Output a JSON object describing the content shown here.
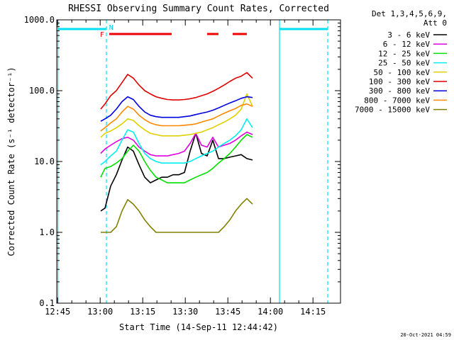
{
  "chart_data": {
    "type": "line",
    "title": "RHESSI Observing Summary Count Rates, Corrected",
    "xlabel": "Start Time (14-Sep-11 12:44:42)",
    "ylabel": "Corrected Count Rate (s⁻¹ detector⁻¹)",
    "yscale": "log",
    "ylim": [
      0.1,
      1000.0
    ],
    "xlim": [
      0,
      100
    ],
    "x_unit": "minutes after 12:44:42",
    "x_ticks": [
      0.3,
      15.3,
      30.3,
      45.3,
      60.3,
      75.3,
      90.3
    ],
    "x_tick_labels": [
      "12:45",
      "13:00",
      "13:15",
      "13:30",
      "13:45",
      "14:00",
      "14:15"
    ],
    "y_tick_labels": [
      "0.1",
      "1.0",
      "10.0",
      "100.0",
      "1000.0"
    ],
    "date_stamp": "20-Oct-2021 04:59",
    "legend": {
      "header": [
        "Det 1,3,4,5,6,9,",
        "Att 0"
      ],
      "placement": "outside-top-right"
    },
    "flags": {
      "F": "F",
      "N": "N"
    },
    "series": [
      {
        "name": "3 - 6 keV",
        "color": "#000000",
        "x": [
          15.5,
          17,
          19,
          21,
          23,
          25,
          27,
          29,
          31,
          33,
          35,
          37,
          39,
          41,
          43,
          45,
          47,
          49,
          51,
          53,
          55,
          57,
          59,
          61,
          63,
          65,
          67,
          69
        ],
        "y": [
          2.0,
          2.2,
          4.5,
          6.5,
          10.5,
          16.0,
          14.0,
          9.0,
          6.0,
          5.0,
          5.5,
          6.0,
          6.0,
          6.5,
          6.5,
          7.0,
          14.0,
          25.0,
          13.0,
          12.0,
          20.0,
          11.0,
          11.0,
          11.5,
          12.0,
          12.5,
          11.0,
          10.5
        ]
      },
      {
        "name": "6 - 12 keV",
        "color": "#e000e0",
        "x": [
          15.5,
          17,
          19,
          21,
          23,
          25,
          27,
          29,
          31,
          33,
          35,
          37,
          39,
          41,
          43,
          45,
          47,
          49,
          51,
          53,
          55,
          57,
          59,
          61,
          63,
          65,
          67,
          69
        ],
        "y": [
          13.0,
          15.0,
          17.0,
          19.0,
          21.0,
          22.0,
          20.0,
          16.0,
          14.0,
          12.5,
          12.0,
          12.0,
          12.0,
          12.5,
          13.0,
          14.0,
          18.0,
          25.0,
          17.0,
          16.0,
          22.0,
          16.0,
          17.0,
          18.0,
          20.0,
          23.0,
          26.0,
          24.0
        ]
      },
      {
        "name": "12 - 25 keV",
        "color": "#00e000",
        "x": [
          15.5,
          17,
          19,
          21,
          23,
          25,
          27,
          29,
          31,
          33,
          35,
          37,
          39,
          41,
          43,
          45,
          47,
          49,
          51,
          53,
          55,
          57,
          59,
          61,
          63,
          65,
          67,
          69
        ],
        "y": [
          6.0,
          8.0,
          8.5,
          9.5,
          11.0,
          14.0,
          17.0,
          14.0,
          10.0,
          7.5,
          6.0,
          5.5,
          5.0,
          5.0,
          5.0,
          5.0,
          5.5,
          6.0,
          6.5,
          7.0,
          8.0,
          9.5,
          11.0,
          13.0,
          16.0,
          20.0,
          24.0,
          22.0
        ]
      },
      {
        "name": "25 - 50 keV",
        "color": "#00f0f0",
        "x": [
          15.5,
          17,
          19,
          21,
          23,
          25,
          27,
          29,
          31,
          33,
          35,
          37,
          39,
          41,
          43,
          45,
          47,
          49,
          51,
          53,
          55,
          57,
          59,
          61,
          63,
          65,
          67,
          69
        ],
        "y": [
          9.0,
          10.0,
          12.0,
          14.0,
          20.0,
          28.0,
          26.0,
          18.0,
          13.0,
          11.0,
          10.0,
          9.5,
          9.5,
          9.5,
          9.5,
          9.5,
          10.0,
          11.0,
          12.0,
          13.0,
          14.0,
          16.0,
          18.0,
          20.0,
          23.0,
          28.0,
          40.0,
          30.0
        ]
      },
      {
        "name": "50 - 100 keV",
        "color": "#e0d000",
        "x": [
          15.5,
          17,
          19,
          21,
          23,
          25,
          27,
          29,
          31,
          33,
          35,
          37,
          39,
          41,
          43,
          45,
          47,
          49,
          51,
          53,
          55,
          57,
          59,
          61,
          63,
          65,
          67,
          69
        ],
        "y": [
          22.0,
          25.0,
          27.0,
          30.0,
          34.0,
          40.0,
          38.0,
          32.0,
          28.0,
          25.0,
          24.0,
          23.0,
          23.0,
          23.0,
          23.0,
          23.5,
          24.0,
          25.0,
          26.0,
          28.0,
          30.0,
          33.0,
          36.0,
          40.0,
          45.0,
          55.0,
          90.0,
          60.0
        ]
      },
      {
        "name": "100 - 300 keV",
        "color": "#e00000",
        "x": [
          15.5,
          17,
          19,
          21,
          23,
          25,
          27,
          29,
          31,
          33,
          35,
          37,
          39,
          41,
          43,
          45,
          47,
          49,
          51,
          53,
          55,
          57,
          59,
          61,
          63,
          65,
          67,
          69
        ],
        "y": [
          55.0,
          65.0,
          85.0,
          100.0,
          130.0,
          170.0,
          150.0,
          120.0,
          100.0,
          90.0,
          82.0,
          78.0,
          75.0,
          74.0,
          74.0,
          75.0,
          77.0,
          80.0,
          85.0,
          90.0,
          98.0,
          108.0,
          120.0,
          135.0,
          150.0,
          160.0,
          180.0,
          150.0
        ]
      },
      {
        "name": "300 - 800 keV",
        "color": "#0000e0",
        "x": [
          15.5,
          17,
          19,
          21,
          23,
          25,
          27,
          29,
          31,
          33,
          35,
          37,
          39,
          41,
          43,
          45,
          47,
          49,
          51,
          53,
          55,
          57,
          59,
          61,
          63,
          65,
          67,
          69
        ],
        "y": [
          37.0,
          40.0,
          45.0,
          55.0,
          70.0,
          82.0,
          75.0,
          60.0,
          50.0,
          45.0,
          43.0,
          42.0,
          42.0,
          42.0,
          42.0,
          43.0,
          44.0,
          46.0,
          48.0,
          50.0,
          53.0,
          57.0,
          62.0,
          67.0,
          72.0,
          78.0,
          82.0,
          80.0
        ]
      },
      {
        "name": "800 - 7000 keV",
        "color": "#ff8800",
        "x": [
          15.5,
          17,
          19,
          21,
          23,
          25,
          27,
          29,
          31,
          33,
          35,
          37,
          39,
          41,
          43,
          45,
          47,
          49,
          51,
          53,
          55,
          57,
          59,
          61,
          63,
          65,
          67,
          69
        ],
        "y": [
          27.0,
          30.0,
          35.0,
          40.0,
          50.0,
          60.0,
          55.0,
          45.0,
          39.0,
          35.0,
          33.0,
          32.0,
          32.0,
          32.0,
          32.0,
          32.5,
          33.0,
          34.0,
          36.0,
          38.0,
          40.0,
          44.0,
          48.0,
          52.0,
          56.0,
          62.0,
          65.0,
          60.0
        ]
      },
      {
        "name": "7000 - 15000 keV",
        "color": "#808000",
        "x": [
          15.5,
          17,
          19,
          21,
          23,
          25,
          27,
          29,
          31,
          33,
          35,
          37,
          39,
          41,
          43,
          45,
          47,
          49,
          51,
          53,
          55,
          57,
          59,
          61,
          63,
          65,
          67,
          69
        ],
        "y": [
          1.0,
          1.0,
          1.0,
          1.2,
          2.0,
          2.9,
          2.5,
          2.0,
          1.5,
          1.2,
          1.0,
          1.0,
          1.0,
          1.0,
          1.0,
          1.0,
          1.0,
          1.0,
          1.0,
          1.0,
          1.0,
          1.0,
          1.2,
          1.5,
          2.0,
          2.5,
          3.0,
          2.5
        ]
      }
    ]
  }
}
